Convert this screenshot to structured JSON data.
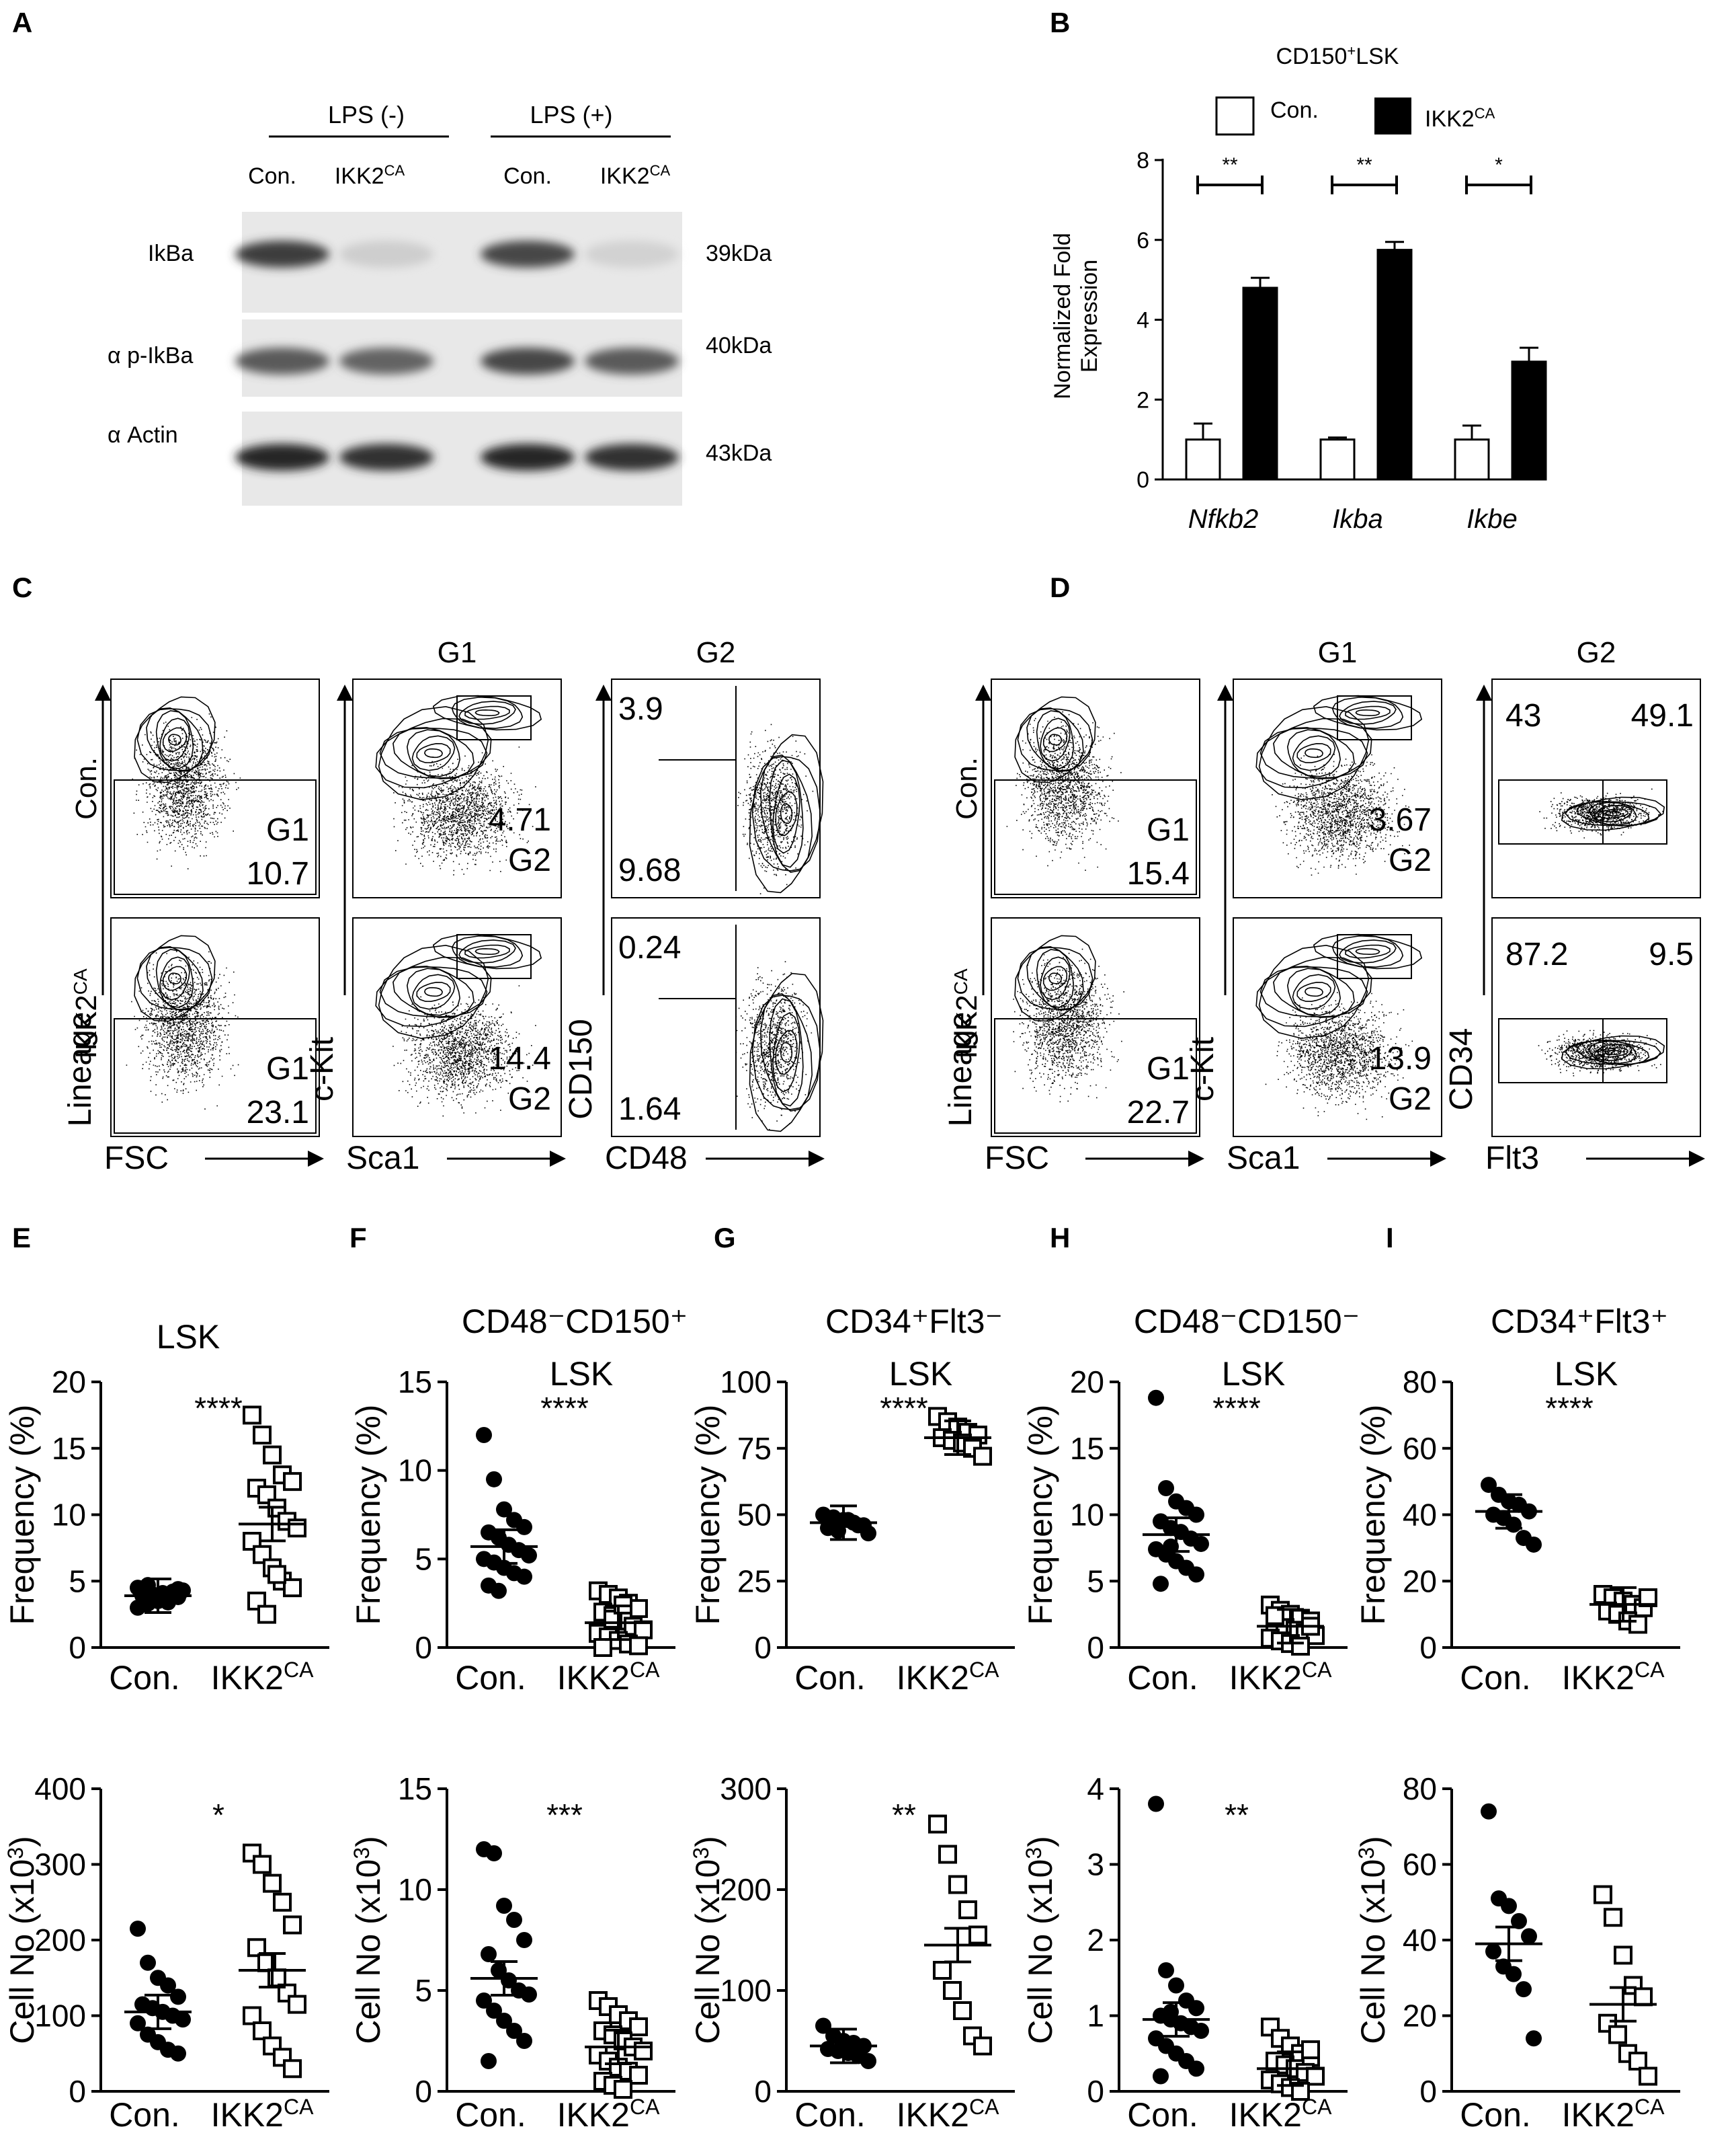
{
  "figure": {
    "panel_letters": [
      "A",
      "B",
      "C",
      "D",
      "E",
      "F",
      "G",
      "H",
      "I"
    ]
  },
  "panel_a": {
    "group_labels": [
      "LPS (-)",
      "LPS (+)"
    ],
    "lane_labels": [
      "Con.",
      "IKK2",
      "Con.",
      "IKK2"
    ],
    "lane_superscript": "CA",
    "rows": [
      {
        "label": "IkBa",
        "kda": "39kDa",
        "intensity": [
          0.85,
          0.12,
          0.8,
          0.1
        ]
      },
      {
        "label": "α p-IkBa",
        "kda": "40kDa",
        "intensity": [
          0.7,
          0.65,
          0.8,
          0.7
        ]
      },
      {
        "label": "α Actin",
        "kda": "43kDa",
        "intensity": [
          0.95,
          0.9,
          0.95,
          0.9
        ]
      }
    ]
  },
  "panel_b": {
    "title": "CD150",
    "title_sup": "+",
    "title_tail": "LSK",
    "legend": [
      "Con.",
      "IKK2"
    ],
    "legend_sup": "CA",
    "ylabel_lines": [
      "Normalized Fold",
      "Expression"
    ],
    "chart_data": {
      "type": "bar",
      "categories": [
        "Nfkb2",
        "Ikba",
        "Ikbe"
      ],
      "series": [
        {
          "name": "Con.",
          "values": [
            1.0,
            1.0,
            1.0
          ],
          "errors": [
            0.4,
            0.05,
            0.35
          ],
          "color": "#ffffff"
        },
        {
          "name": "IKK2CA",
          "values": [
            4.8,
            5.75,
            2.95
          ],
          "errors": [
            0.25,
            0.2,
            0.35
          ],
          "color": "#000000"
        }
      ],
      "ylim": [
        0,
        8
      ],
      "yticks": [
        "0",
        "2",
        "4",
        "6",
        "8"
      ],
      "significance": [
        "**",
        "**",
        "*"
      ]
    }
  },
  "panel_c": {
    "col_titles": [
      "G1",
      "G2"
    ],
    "row_labels": [
      "Con.",
      "IKK2"
    ],
    "row_sup": "CA",
    "axis_x": [
      "FSC",
      "Sca1",
      "CD48"
    ],
    "axis_y": [
      "Lineage",
      "c-Kit",
      "CD150"
    ],
    "con": {
      "g1_name": "G1",
      "g1_val": "10.7",
      "sca_val": "4.71",
      "g2_name": "G2",
      "cd150_top": "3.9",
      "cd150_bot": "9.68"
    },
    "ikk": {
      "g1_name": "G1",
      "g1_val": "23.1",
      "sca_val": "14.4",
      "g2_name": "G2",
      "cd150_top": "0.24",
      "cd150_bot": "1.64"
    }
  },
  "panel_d": {
    "col_titles": [
      "G1",
      "G2"
    ],
    "row_labels": [
      "Con.",
      "IKK2"
    ],
    "row_sup": "CA",
    "axis_x": [
      "FSC",
      "Sca1",
      "Flt3"
    ],
    "axis_y": [
      "Lineage",
      "c-Kit",
      "CD34"
    ],
    "con": {
      "g1_name": "G1",
      "g1_val": "15.4",
      "sca_val": "3.67",
      "g2_name": "G2",
      "flt_left": "43",
      "flt_right": "49.1"
    },
    "ikk": {
      "g1_name": "G1",
      "g1_val": "22.7",
      "sca_val": "13.9",
      "g2_name": "G2",
      "flt_left": "87.2",
      "flt_right": "9.5"
    }
  },
  "dot_plots": {
    "x_categories": [
      "Con.",
      "IKK2"
    ],
    "x_sup": "CA",
    "freq_ylabel": "Frequency (%)",
    "cell_ylabel_main": "Cell No (x10",
    "cell_ylabel_sup": "3",
    "cell_ylabel_tail": ")",
    "chart_data": [
      {
        "panel": "E",
        "type": "scatter",
        "title_lines": [
          "LSK"
        ],
        "ylim": [
          0,
          20
        ],
        "yticks": [
          "0",
          "5",
          "10",
          "15",
          "20"
        ],
        "sig": "****",
        "con_mean": 3.9,
        "ikk_mean": 9.3,
        "con": [
          3.0,
          3.3,
          3.5,
          3.7,
          3.8,
          3.9,
          4.0,
          4.1,
          4.2,
          4.3,
          4.5,
          4.7,
          3.6,
          3.4,
          4.4,
          4.0
        ],
        "ikk": [
          17.5,
          16.0,
          14.5,
          13.0,
          12.5,
          12.0,
          11.5,
          10.5,
          9.5,
          9.0,
          8.0,
          7.0,
          6.0,
          5.0,
          4.5,
          3.5,
          2.5,
          5.5
        ]
      },
      {
        "panel": "F",
        "type": "scatter",
        "title_lines": [
          "CD48⁻CD150⁺",
          "LSK"
        ],
        "ylim": [
          0,
          15
        ],
        "yticks": [
          "0",
          "5",
          "10",
          "15"
        ],
        "sig": "****",
        "con_mean": 5.7,
        "ikk_mean": 1.4,
        "con": [
          12.0,
          9.5,
          7.8,
          7.2,
          6.8,
          6.5,
          6.2,
          5.8,
          5.5,
          5.2,
          5.0,
          4.8,
          4.5,
          4.2,
          4.0,
          3.5,
          3.2
        ],
        "ikk": [
          3.2,
          3.0,
          2.8,
          2.5,
          2.2,
          2.0,
          1.8,
          1.5,
          1.2,
          1.0,
          0.8,
          0.6,
          0.4,
          0.2,
          0.1,
          0.0,
          1.6,
          2.4
        ]
      },
      {
        "panel": "G",
        "type": "scatter",
        "title_lines": [
          "CD34⁺Flt3⁻",
          "LSK"
        ],
        "ylim": [
          0,
          100
        ],
        "yticks": [
          "0",
          "25",
          "50",
          "75",
          "100"
        ],
        "sig": "****",
        "con_mean": 47,
        "ikk_mean": 79,
        "con": [
          50,
          49,
          48,
          47,
          46,
          45,
          44,
          48,
          46,
          43
        ],
        "ikk": [
          87,
          85,
          83,
          81,
          80,
          79,
          78,
          77,
          75,
          72
        ]
      },
      {
        "panel": "H",
        "type": "scatter",
        "title_lines": [
          "CD48⁻CD150⁻",
          "LSK"
        ],
        "ylim": [
          0,
          20
        ],
        "yticks": [
          "0",
          "5",
          "10",
          "15",
          "20"
        ],
        "sig": "****",
        "con_mean": 8.5,
        "ikk_mean": 1.6,
        "con": [
          18.8,
          12.0,
          11.0,
          10.5,
          10.0,
          9.5,
          9.0,
          8.7,
          8.2,
          7.8,
          7.4,
          7.0,
          6.5,
          6.0,
          5.5,
          4.8,
          7.6
        ],
        "ikk": [
          3.2,
          2.8,
          2.5,
          2.2,
          2.0,
          1.8,
          1.5,
          1.3,
          1.1,
          0.9,
          0.7,
          0.5,
          0.3,
          0.1,
          1.6,
          2.4
        ]
      },
      {
        "panel": "I",
        "type": "scatter",
        "title_lines": [
          "CD34⁺Flt3⁺",
          "LSK"
        ],
        "ylim": [
          0,
          80
        ],
        "yticks": [
          "0",
          "20",
          "40",
          "60",
          "80"
        ],
        "sig": "****",
        "con_mean": 41,
        "ikk_mean": 13,
        "con": [
          49,
          46,
          44,
          43,
          41,
          40,
          39,
          37,
          33,
          31
        ],
        "ikk": [
          16,
          15,
          14,
          13,
          12,
          11,
          10,
          8,
          7,
          15
        ]
      },
      {
        "panel": "E2",
        "type": "scatter",
        "title_lines": [],
        "ylim": [
          0,
          400
        ],
        "yticks": [
          "0",
          "100",
          "200",
          "300",
          "400"
        ],
        "sig": "*",
        "con_mean": 105,
        "ikk_mean": 160,
        "con": [
          215,
          170,
          150,
          140,
          125,
          115,
          110,
          105,
          100,
          95,
          90,
          75,
          65,
          55,
          50
        ],
        "ikk": [
          315,
          300,
          275,
          250,
          220,
          190,
          170,
          150,
          130,
          115,
          100,
          80,
          60,
          45,
          30
        ]
      },
      {
        "panel": "F2",
        "type": "scatter",
        "title_lines": [],
        "ylim": [
          0,
          15
        ],
        "yticks": [
          "0",
          "5",
          "10",
          "15"
        ],
        "sig": "***",
        "con_mean": 5.6,
        "ikk_mean": 2.2,
        "con": [
          12.0,
          11.8,
          9.2,
          8.5,
          7.5,
          6.8,
          6.0,
          5.5,
          5.0,
          4.8,
          4.5,
          4.0,
          3.5,
          3.0,
          2.5,
          1.5
        ],
        "ikk": [
          4.5,
          4.2,
          3.8,
          3.5,
          3.2,
          3.0,
          2.8,
          2.5,
          2.2,
          2.0,
          1.8,
          1.5,
          1.2,
          1.0,
          0.8,
          0.5,
          0.3,
          0.1
        ]
      },
      {
        "panel": "G2",
        "type": "scatter",
        "title_lines": [],
        "ylim": [
          0,
          300
        ],
        "yticks": [
          "0",
          "100",
          "200",
          "300"
        ],
        "sig": "**",
        "con_mean": 45,
        "ikk_mean": 145,
        "con": [
          65,
          55,
          50,
          48,
          45,
          42,
          40,
          38,
          35,
          30
        ],
        "ikk": [
          265,
          235,
          205,
          180,
          155,
          120,
          100,
          80,
          55,
          45
        ]
      },
      {
        "panel": "H2",
        "type": "scatter",
        "title_lines": [],
        "ylim": [
          0,
          4
        ],
        "yticks": [
          "0",
          "1",
          "2",
          "3",
          "4"
        ],
        "sig": "**",
        "con_mean": 0.95,
        "ikk_mean": 0.3,
        "con": [
          3.8,
          1.6,
          1.4,
          1.2,
          1.1,
          1.0,
          0.95,
          0.9,
          0.85,
          0.8,
          0.7,
          0.6,
          0.5,
          0.4,
          0.3,
          0.2,
          1.05
        ],
        "ikk": [
          0.85,
          0.7,
          0.6,
          0.5,
          0.45,
          0.4,
          0.35,
          0.3,
          0.25,
          0.2,
          0.15,
          0.1,
          0.05,
          0.0,
          0.55
        ]
      },
      {
        "panel": "I2",
        "type": "scatter",
        "title_lines": [],
        "ylim": [
          0,
          80
        ],
        "yticks": [
          "0",
          "20",
          "40",
          "60",
          "80"
        ],
        "sig": "",
        "con_mean": 39,
        "ikk_mean": 23,
        "con": [
          74,
          51,
          49,
          45,
          41,
          37,
          33,
          31,
          27,
          14
        ],
        "ikk": [
          52,
          46,
          36,
          28,
          25,
          18,
          15,
          10,
          8,
          4
        ]
      }
    ]
  }
}
